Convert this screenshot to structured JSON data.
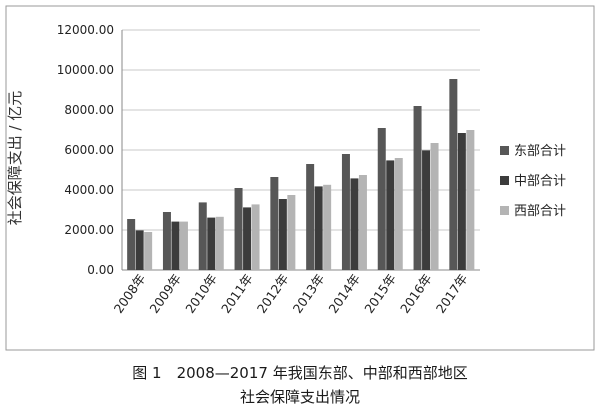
{
  "chart_data": {
    "type": "bar",
    "ylabel": "社会保障支出 / 亿元",
    "xlabel": "",
    "ylim": [
      0,
      12000
    ],
    "yticks": [
      0,
      2000,
      4000,
      6000,
      8000,
      10000,
      12000
    ],
    "ytick_labels": [
      "0.00",
      "2000.00",
      "4000.00",
      "6000.00",
      "8000.00",
      "10000.00",
      "12000.00"
    ],
    "categories": [
      "2008年",
      "2009年",
      "2010年",
      "2011年",
      "2012年",
      "2013年",
      "2014年",
      "2015年",
      "2016年",
      "2017年"
    ],
    "legend_position": "right",
    "series": [
      {
        "name": "东部合计",
        "color": "#575757",
        "values": [
          2550,
          2900,
          3380,
          4100,
          4650,
          5300,
          5800,
          7100,
          8200,
          9550
        ]
      },
      {
        "name": "中部合计",
        "color": "#3c3c3c",
        "values": [
          1980,
          2420,
          2620,
          3130,
          3550,
          4180,
          4580,
          5480,
          5980,
          6850
        ]
      },
      {
        "name": "西部合计",
        "color": "#b4b4b4",
        "values": [
          1900,
          2420,
          2660,
          3280,
          3750,
          4260,
          4750,
          5600,
          6350,
          7000
        ]
      }
    ]
  },
  "caption": {
    "line1": "图 1　2008—2017 年我国东部、中部和西部地区",
    "line2": "社会保障支出情况"
  }
}
